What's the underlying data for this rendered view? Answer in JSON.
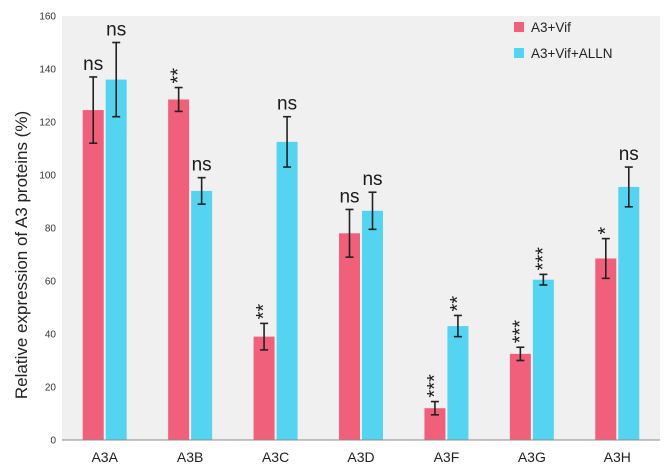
{
  "chart_data": {
    "type": "bar",
    "categories": [
      "A3A",
      "A3B",
      "A3C",
      "A3D",
      "A3F",
      "A3G",
      "A3H"
    ],
    "series": [
      {
        "name": "A3+Vif",
        "color": "#f0607a",
        "values": [
          124.5,
          128.5,
          39,
          78,
          12,
          32.5,
          68.5
        ],
        "errors": [
          12.5,
          4.5,
          5,
          9,
          2.5,
          2.5,
          7.5
        ],
        "annotations": [
          "ns",
          "**",
          "**",
          "ns",
          "***",
          "***",
          "*"
        ]
      },
      {
        "name": "A3+Vif+ALLN",
        "color": "#55d4f2",
        "values": [
          136,
          94,
          112.5,
          86.5,
          43,
          60.5,
          95.5
        ],
        "errors": [
          14,
          5,
          9.5,
          7,
          4,
          2,
          7.5
        ],
        "annotations": [
          "ns",
          "ns",
          "ns",
          "ns",
          "**",
          "***",
          "ns"
        ]
      }
    ],
    "ylabel": "Relative expression of A3 proteins (%)",
    "xlabel": "",
    "ylim": [
      0,
      160
    ],
    "yticks": [
      0,
      20,
      40,
      60,
      80,
      100,
      120,
      140,
      160
    ],
    "grid": false,
    "legend": "top-right",
    "background_color": "#f0f0f0"
  }
}
